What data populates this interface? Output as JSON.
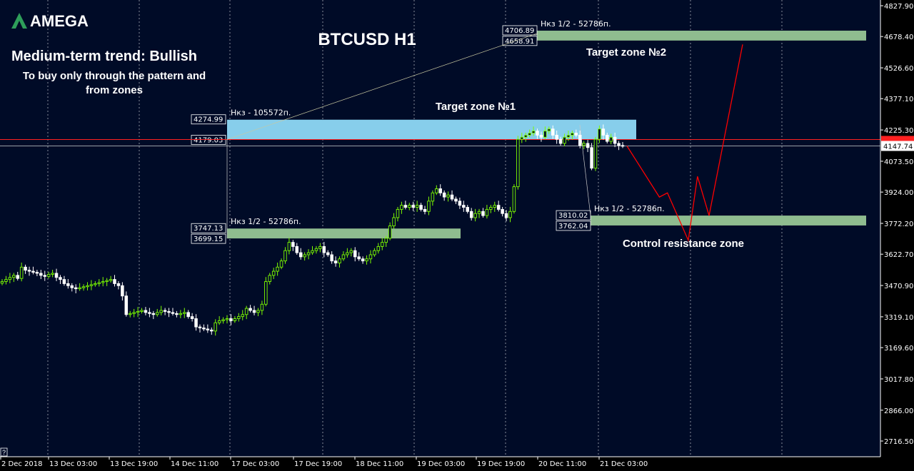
{
  "brand": {
    "logo_text": "AMEGA"
  },
  "chart_data": {
    "type": "candlestick",
    "title": "BTCUSD H1",
    "trend_heading": "Medium-term trend: Bullish",
    "trend_note_line1": "To buy only through the pattern  and",
    "trend_note_line2": "from zones",
    "ylim": [
      2640,
      4850
    ],
    "y_ticks": [
      4827.9,
      4678.4,
      4526.6,
      4377.1,
      4225.3,
      4073.5,
      3924.0,
      3772.2,
      3622.7,
      3470.9,
      3319.1,
      3169.6,
      3017.8,
      2866.0,
      2716.5
    ],
    "y_tick_labels": [
      "4827.90",
      "4678.40",
      "4526.60",
      "4377.10",
      "4225.30",
      "4073.50",
      "3924.00",
      "3772.20",
      "3622.70",
      "3470.90",
      "3319.10",
      "3169.60",
      "3017.80",
      "2866.00",
      "2716.50"
    ],
    "x_tick_labels": [
      "2 Dec 2018",
      "13 Dec 03:00",
      "13 Dec 19:00",
      "14 Dec 11:00",
      "17 Dec 03:00",
      "17 Dec 19:00",
      "18 Dec 11:00",
      "19 Dec 03:00",
      "19 Dec 19:00",
      "20 Dec 11:00",
      "21 Dec 03:00"
    ],
    "current_price": 4147.74,
    "current_price_label": "4147.74",
    "red_level": 4179.03,
    "colors": {
      "bull": "#7CFC00",
      "bear": "#ffffff",
      "zone_blue": "#87CEEB",
      "zone_green": "#8FBC8F",
      "projection": "#ff0000",
      "grid": "#ffffff",
      "background": "#000000"
    },
    "zones": [
      {
        "name": "Target zone №1",
        "top": 4274.99,
        "bottom": 4179.03,
        "top_label": "4274.99",
        "bottom_label": "4179.03",
        "note": "Нкз - 105572п.",
        "color": "#87CEEB"
      },
      {
        "name": "Target zone №2",
        "top": 4706.89,
        "bottom": 4658.91,
        "top_label": "4706.89",
        "bottom_label": "4658.91",
        "note": "Нкз 1/2 - 52786п.",
        "color": "#8FBC8F"
      },
      {
        "name": "",
        "top": 3747.13,
        "bottom": 3699.15,
        "top_label": "3747.13",
        "bottom_label": "3699.15",
        "note": "Нкз 1/2 - 52786п.",
        "color": "#8FBC8F"
      },
      {
        "name": "Control resistance zone",
        "top": 3810.02,
        "bottom": 3762.04,
        "top_label": "3810.02",
        "bottom_label": "3762.04",
        "note": "Нкз 1/2 - 52786п.",
        "color": "#8FBC8F"
      }
    ],
    "zone_titles": {
      "z1": "Target zone №1",
      "z2": "Target zone №2",
      "control": "Control resistance zone"
    },
    "candles_close": [
      3490,
      3500,
      3510,
      3520,
      3505,
      3560,
      3545,
      3540,
      3535,
      3530,
      3520,
      3515,
      3525,
      3530,
      3510,
      3500,
      3480,
      3470,
      3460,
      3455,
      3460,
      3465,
      3470,
      3475,
      3480,
      3485,
      3490,
      3495,
      3500,
      3480,
      3470,
      3420,
      3330,
      3335,
      3340,
      3345,
      3350,
      3340,
      3335,
      3330,
      3340,
      3350,
      3345,
      3340,
      3335,
      3330,
      3335,
      3340,
      3320,
      3310,
      3270,
      3265,
      3260,
      3255,
      3250,
      3290,
      3300,
      3305,
      3310,
      3300,
      3310,
      3320,
      3330,
      3360,
      3350,
      3340,
      3350,
      3380,
      3490,
      3520,
      3540,
      3560,
      3590,
      3640,
      3680,
      3660,
      3630,
      3610,
      3620,
      3630,
      3640,
      3650,
      3660,
      3630,
      3620,
      3590,
      3580,
      3600,
      3620,
      3630,
      3640,
      3610,
      3600,
      3590,
      3600,
      3620,
      3640,
      3660,
      3680,
      3700,
      3760,
      3800,
      3840,
      3860,
      3850,
      3860,
      3850,
      3860,
      3840,
      3830,
      3880,
      3920,
      3940,
      3920,
      3900,
      3910,
      3890,
      3880,
      3860,
      3850,
      3830,
      3800,
      3820,
      3830,
      3810,
      3840,
      3850,
      3860,
      3840,
      3820,
      3800,
      3830,
      3950,
      4180,
      4190,
      4200,
      4210,
      4220,
      4200,
      4190,
      4220,
      4230,
      4200,
      4180,
      4160,
      4190,
      4200,
      4210,
      4200,
      4150,
      4160,
      4140,
      4040,
      4180,
      4230,
      4200,
      4170,
      4190,
      4160,
      4150,
      4147.74
    ],
    "projection_path": [
      [
        4147.74,
        0
      ],
      [
        3900,
        0.28
      ],
      [
        3920,
        0.35
      ],
      [
        3690,
        0.53
      ],
      [
        4000,
        0.61
      ],
      [
        3810,
        0.71
      ],
      [
        4640,
        1.0
      ]
    ]
  }
}
